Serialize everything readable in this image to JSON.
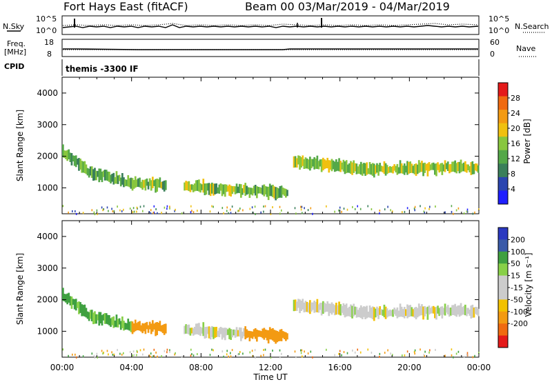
{
  "header": {
    "station": "Fort Hays East (fitACF)",
    "beam_range": "Beam 00  03/Mar/2019 - 04/Mar/2019"
  },
  "param_panels": {
    "nsky_label": "N.Sky",
    "nsearch_label": "N.Search",
    "freq_label_1": "Freq.",
    "freq_label_2": "[MHz]",
    "nave_label": "Nave",
    "cpid_label": "CPID",
    "cpid_value": "themis -3300 IF",
    "noise_left_ticks": [
      "10^5",
      "10^0"
    ],
    "noise_right_ticks": [
      "10^5",
      "10^0"
    ],
    "freq_ticks": [
      "18",
      "8"
    ],
    "nave_ticks": [
      "60",
      "0"
    ]
  },
  "axes": {
    "xlabel": "Time UT",
    "ylabel": "Slant Range [km]",
    "power_label": "Power [dB]",
    "velocity_label": "Velocity [m s⁻¹]"
  },
  "colors": {
    "power_scale": [
      "#1e1eff",
      "#2a45b0",
      "#3a7f5a",
      "#54a848",
      "#88c63e",
      "#f0c010",
      "#f39a12",
      "#f06a10",
      "#e41a1a"
    ],
    "velocity_scale": [
      "#e41a1a",
      "#f06a10",
      "#f39a12",
      "#f2c100",
      "#cccccc",
      "#cccccc",
      "#88d048",
      "#3fa040",
      "#3a5aa8",
      "#2a38c0"
    ]
  },
  "chart_data": [
    {
      "type": "heatmap",
      "title": "Power",
      "x_ticks": [
        "00:00",
        "04:00",
        "08:00",
        "12:00",
        "16:00",
        "20:00",
        "00:00"
      ],
      "xlim_hours": [
        0,
        24
      ],
      "y_ticks": [
        1000,
        2000,
        3000,
        4000
      ],
      "ylim_km": [
        180,
        4500
      ],
      "colorbar": {
        "label": "Power [dB]",
        "ticks": [
          4,
          8,
          12,
          16,
          20,
          24,
          28
        ],
        "range": [
          0,
          32
        ]
      },
      "echo_regions": [
        {
          "t_start": 0.0,
          "t_end": 1.5,
          "r_from": 2150,
          "r_to": 1500,
          "value": 13
        },
        {
          "t_start": 1.5,
          "t_end": 4.0,
          "r_from": 1500,
          "r_to": 1150,
          "value": 12
        },
        {
          "t_start": 4.0,
          "t_end": 6.0,
          "r_from": 1150,
          "r_to": 1100,
          "value": 14
        },
        {
          "t_start": 7.0,
          "t_end": 10.5,
          "r_from": 1050,
          "r_to": 920,
          "value": 15
        },
        {
          "t_start": 10.5,
          "t_end": 13.0,
          "r_from": 900,
          "r_to": 860,
          "value": 13
        },
        {
          "t_start": 13.3,
          "t_end": 18.0,
          "r_from": 1850,
          "r_to": 1550,
          "value": 16
        },
        {
          "t_start": 18.0,
          "t_end": 24.0,
          "r_from": 1600,
          "r_to": 1650,
          "value": 16
        }
      ]
    },
    {
      "type": "heatmap",
      "title": "Velocity",
      "x_ticks": [
        "00:00",
        "04:00",
        "08:00",
        "12:00",
        "16:00",
        "20:00",
        "00:00"
      ],
      "xlim_hours": [
        0,
        24
      ],
      "y_ticks": [
        1000,
        2000,
        3000,
        4000
      ],
      "ylim_km": [
        180,
        4500
      ],
      "colorbar": {
        "label": "Velocity [m s⁻¹]",
        "ticks": [
          200,
          100,
          50,
          15,
          -15,
          -50,
          -100,
          -200
        ],
        "range": [
          -250,
          250
        ]
      },
      "echo_regions": [
        {
          "t_start": 0.0,
          "t_end": 1.5,
          "r_from": 2150,
          "r_to": 1500,
          "value": 60
        },
        {
          "t_start": 1.5,
          "t_end": 4.0,
          "r_from": 1500,
          "r_to": 1150,
          "value": 55
        },
        {
          "t_start": 4.0,
          "t_end": 6.0,
          "r_from": 1150,
          "r_to": 1100,
          "value": -70
        },
        {
          "t_start": 7.0,
          "t_end": 10.5,
          "r_from": 1050,
          "r_to": 920,
          "value": 0
        },
        {
          "t_start": 10.5,
          "t_end": 13.0,
          "r_from": 900,
          "r_to": 860,
          "value": -75
        },
        {
          "t_start": 13.3,
          "t_end": 18.0,
          "r_from": 1850,
          "r_to": 1550,
          "value": 0
        },
        {
          "t_start": 18.0,
          "t_end": 24.0,
          "r_from": 1600,
          "r_to": 1650,
          "value": 0
        }
      ]
    }
  ]
}
